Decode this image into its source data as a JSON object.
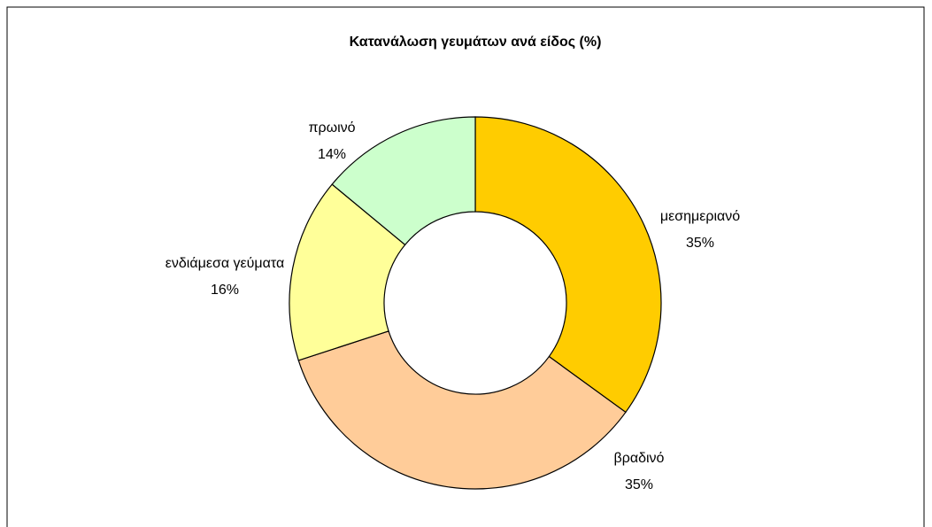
{
  "chart_data": {
    "type": "donut",
    "title": "Κατανάλωση γευμάτων ανά είδος (%)",
    "categories": [
      "μεσημεριανό",
      "βραδινό",
      "ενδιάμεσα γεύματα",
      "πρωινό"
    ],
    "values": [
      35,
      35,
      16,
      14
    ],
    "value_labels": [
      "35%",
      "35%",
      "16%",
      "14%"
    ],
    "colors": [
      "#ffcc00",
      "#ffcc99",
      "#ffff99",
      "#ccffcc"
    ]
  }
}
